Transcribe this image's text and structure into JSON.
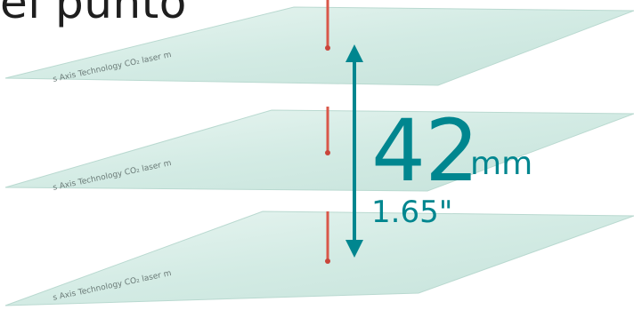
{
  "heading": {
    "text": "el punto"
  },
  "diagram": {
    "plate_engraving_text": "s Axis Technology CO₂ laser m",
    "distance_value": "42",
    "distance_unit": "mm",
    "distance_imperial": "1.65\""
  },
  "colors": {
    "accent": "#00868f",
    "laser": "#d44f3f",
    "plate": "#d6ece6"
  }
}
